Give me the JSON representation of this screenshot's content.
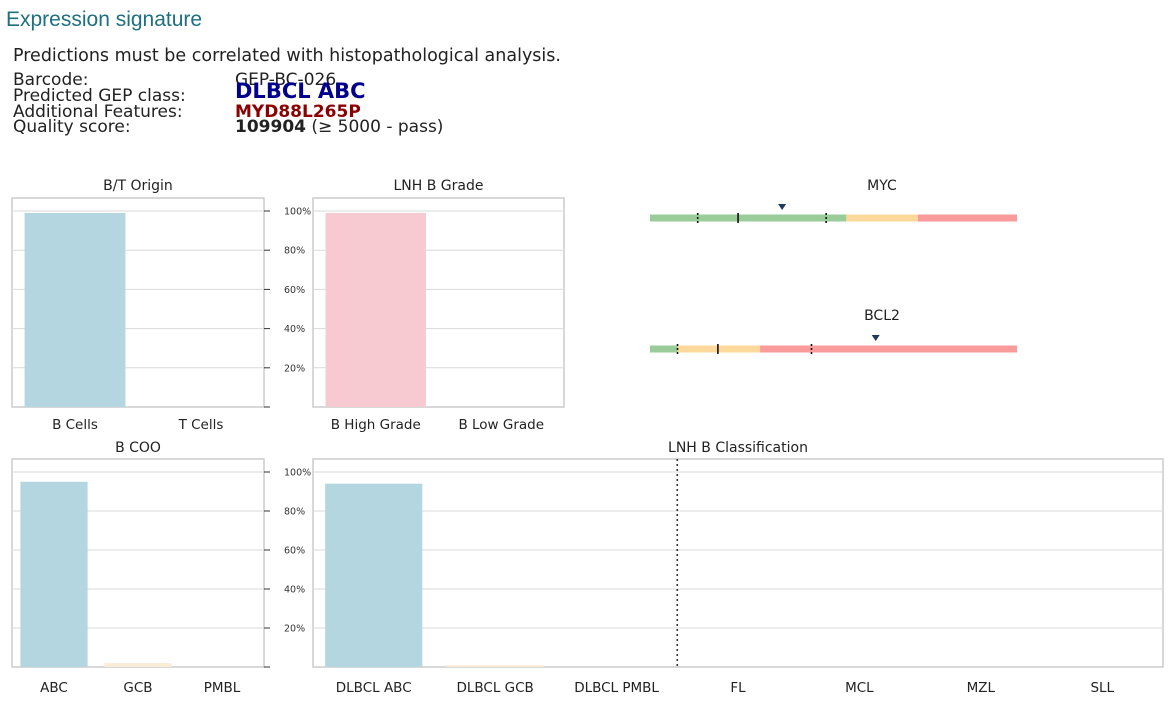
{
  "header": {
    "section_title": "Expression signature",
    "note": "Predictions must be correlated with histopathological analysis.",
    "barcode_label": "Barcode:",
    "barcode_value": "GEP-BC-026",
    "gep_label": "Predicted GEP class:",
    "gep_value": "DLBCL ABC",
    "features_label": "Additional Features:",
    "features_value": "MYD88L265P",
    "quality_label": "Quality score:",
    "quality_value": "109904",
    "quality_suffix": "(≥ 5000 - pass)"
  },
  "colors": {
    "blue_bar": "#b3d6e0",
    "pink_bar": "#f7c9d1",
    "cream_bar": "#faedd6",
    "green": "#99cc99",
    "orange": "#fcd89a",
    "red": "#f99b9b",
    "marker": "#1d3b5e",
    "grid": "#d9d9d9",
    "frame": "#cccccc"
  },
  "chart_data": [
    {
      "type": "bar",
      "title": "B/T Origin",
      "categories": [
        "B Cells",
        "T Cells"
      ],
      "values": [
        99,
        0
      ],
      "ylim": [
        0,
        100
      ],
      "yticks": [
        "100%",
        "80%",
        "60%",
        "40%",
        "20%"
      ],
      "grid": true
    },
    {
      "type": "bar",
      "title": "LNH B Grade",
      "categories": [
        "B High Grade",
        "B Low Grade"
      ],
      "values": [
        99,
        0
      ],
      "ylim": [
        0,
        100
      ],
      "grid": true
    },
    {
      "type": "bar",
      "title": "B COO",
      "categories": [
        "ABC",
        "GCB",
        "PMBL"
      ],
      "values": [
        95,
        2,
        0
      ],
      "ylim": [
        0,
        100
      ],
      "yticks": [
        "100%",
        "80%",
        "60%",
        "40%",
        "20%"
      ],
      "grid": true
    },
    {
      "type": "bar",
      "title": "LNH B Classification",
      "categories": [
        "DLBCL ABC",
        "DLBCL GCB",
        "DLBCL PMBL",
        "FL",
        "MCL",
        "MZL",
        "SLL"
      ],
      "values": [
        94,
        1,
        0,
        0,
        0,
        0,
        0
      ],
      "ylim": [
        0,
        100
      ],
      "grid": true,
      "separator_after": "DLBCL PMBL"
    },
    {
      "type": "gauge",
      "title": "MYC",
      "segments": [
        {
          "color": "green",
          "fraction": 0.535
        },
        {
          "color": "orange",
          "fraction": 0.195
        },
        {
          "color": "red",
          "fraction": 0.27
        }
      ],
      "ticks": [
        0.13,
        0.24,
        0.48
      ],
      "marker": 0.36
    },
    {
      "type": "gauge",
      "title": "BCL2",
      "segments": [
        {
          "color": "green",
          "fraction": 0.075
        },
        {
          "color": "orange",
          "fraction": 0.225
        },
        {
          "color": "red",
          "fraction": 0.7
        }
      ],
      "ticks": [
        0.075,
        0.185,
        0.44
      ],
      "marker": 0.615
    }
  ]
}
